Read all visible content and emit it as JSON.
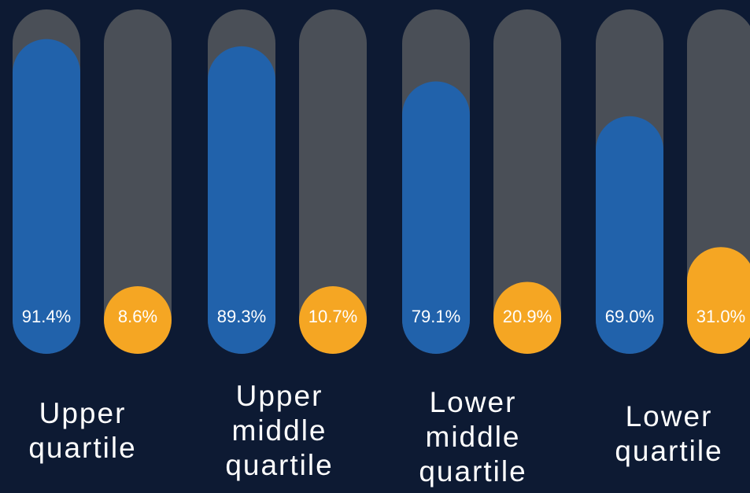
{
  "chart_data": {
    "type": "bar",
    "categories": [
      "Upper quartile",
      "Upper middle quartile",
      "Lower middle quartile",
      "Lower quartile"
    ],
    "series": [
      {
        "values": [
          91.4,
          89.3,
          79.1,
          69.0
        ],
        "labels": [
          "91.4%",
          "89.3%",
          "79.1%",
          "69.0%"
        ],
        "color": "#2162ab"
      },
      {
        "values": [
          8.6,
          10.7,
          20.9,
          31.0
        ],
        "labels": [
          "8.6%",
          "10.7%",
          "20.9%",
          "31.0%"
        ],
        "color": "#f5a623"
      }
    ],
    "ylim": [
      0,
      100
    ],
    "track_color": "#4a4f57",
    "background": "#0d1a33",
    "label_color": "#ffffff"
  }
}
